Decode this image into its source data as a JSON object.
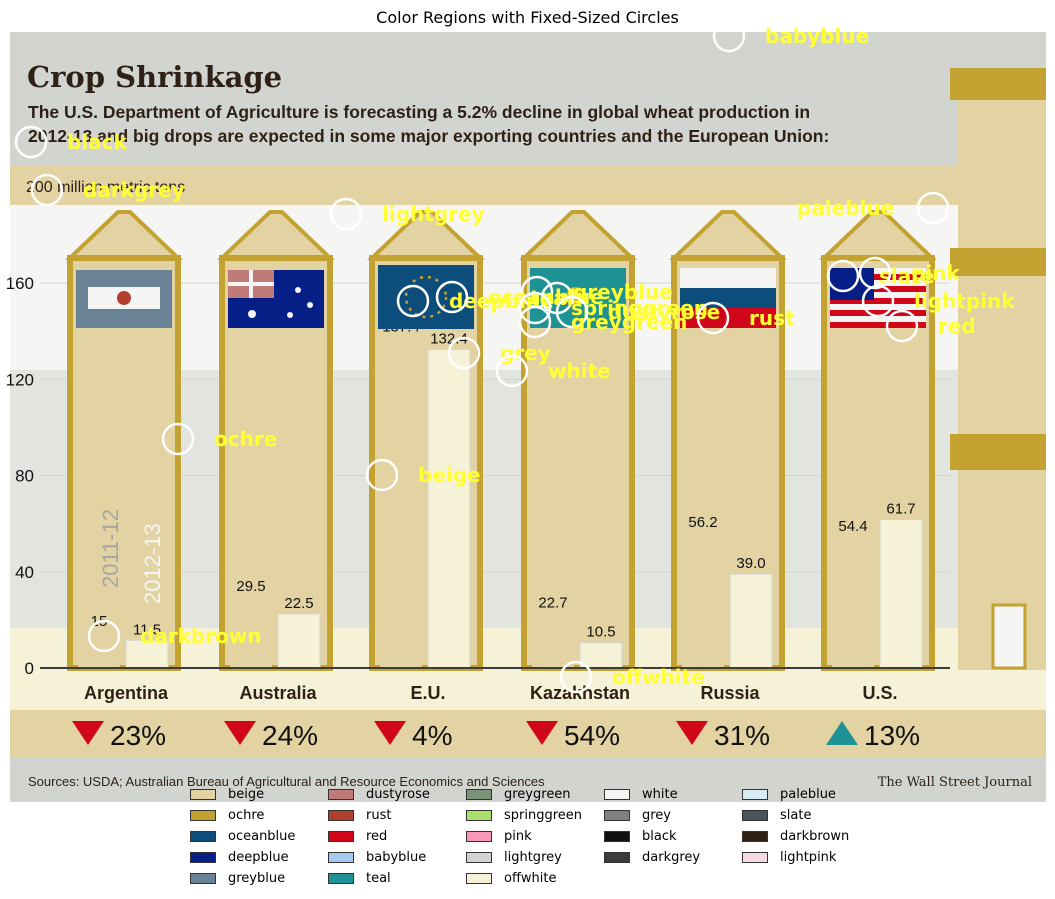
{
  "figure": {
    "title": "Color Regions with Fixed-Sized Circles"
  },
  "infographic": {
    "headline": "Crop Shrinkage",
    "subtitle_line1": "The U.S. Department of Agriculture is forecasting a 5.2% decline in global wheat production in",
    "subtitle_line2": "2012-13 and big drops are expected in some major exporting countries and the European Union:",
    "unit_label": "200 million metric tons",
    "source": "Sources: USDA; Australian Bureau of Agricultural and Resource Economics and Sciences",
    "publisher": "The Wall Street Journal",
    "year_labels": [
      "2011-12",
      "2012-13"
    ]
  },
  "chart_data": {
    "type": "bar",
    "categories": [
      "Argentina",
      "Australia",
      "E.U.",
      "Kazakhstan",
      "Russia",
      "U.S."
    ],
    "series": [
      {
        "name": "2011-12",
        "values": [
          15,
          29.5,
          137.4,
          22.7,
          56.2,
          54.4
        ]
      },
      {
        "name": "2012-13",
        "values": [
          11.5,
          22.5,
          132.4,
          10.5,
          39.0,
          61.7
        ]
      }
    ],
    "value_labels": [
      [
        "15",
        "11.5"
      ],
      [
        "29.5",
        "22.5"
      ],
      [
        "137.4",
        "132.4"
      ],
      [
        "22.7",
        "10.5"
      ],
      [
        "56.2",
        "39.0"
      ],
      [
        "54.4",
        "61.7"
      ]
    ],
    "changes": [
      {
        "text": "23%",
        "direction": "down"
      },
      {
        "text": "24%",
        "direction": "down"
      },
      {
        "text": "4%",
        "direction": "down"
      },
      {
        "text": "54%",
        "direction": "down"
      },
      {
        "text": "31%",
        "direction": "down"
      },
      {
        "text": "13%",
        "direction": "up"
      }
    ],
    "ylim": [
      0,
      200
    ],
    "yticks": [
      0,
      40,
      80,
      120,
      160
    ],
    "ytick_labels": [
      "0",
      "40",
      "80",
      "120",
      "160"
    ],
    "grid": true
  },
  "annotations": [
    {
      "label": "babyblue"
    },
    {
      "label": "black"
    },
    {
      "label": "darkgrey"
    },
    {
      "label": "lightgrey"
    },
    {
      "label": "paleblue"
    },
    {
      "label": "slate"
    },
    {
      "label": "pink"
    },
    {
      "label": "lightpink"
    },
    {
      "label": "red"
    },
    {
      "label": "greyblue"
    },
    {
      "label": "deepblue"
    },
    {
      "label": "oceanblue"
    },
    {
      "label": "teal"
    },
    {
      "label": "springgreen"
    },
    {
      "label": "dustyrose"
    },
    {
      "label": "greygreen"
    },
    {
      "label": "rust"
    },
    {
      "label": "grey"
    },
    {
      "label": "white"
    },
    {
      "label": "ochre"
    },
    {
      "label": "beige"
    },
    {
      "label": "darkbrown"
    },
    {
      "label": "offwhite"
    }
  ],
  "legend": {
    "columns": [
      [
        {
          "label": "beige",
          "color": "#e3d3a3"
        },
        {
          "label": "ochre",
          "color": "#c4a232"
        },
        {
          "label": "oceanblue",
          "color": "#0d4d7c"
        },
        {
          "label": "deepblue",
          "color": "#061f86"
        },
        {
          "label": "greyblue",
          "color": "#6a8296"
        }
      ],
      [
        {
          "label": "dustyrose",
          "color": "#c07a78"
        },
        {
          "label": "rust",
          "color": "#b23f2b"
        },
        {
          "label": "red",
          "color": "#d0061b"
        },
        {
          "label": "babyblue",
          "color": "#a6c8ec"
        },
        {
          "label": "teal",
          "color": "#1e9294"
        }
      ],
      [
        {
          "label": "greygreen",
          "color": "#7a947a"
        },
        {
          "label": "springgreen",
          "color": "#a8e06a"
        },
        {
          "label": "pink",
          "color": "#f598ba"
        },
        {
          "label": "lightgrey",
          "color": "#d2d5cf"
        },
        {
          "label": "offwhite",
          "color": "#f6f2d8"
        }
      ],
      [
        {
          "label": "white",
          "color": "#f5f6f4"
        },
        {
          "label": "grey",
          "color": "#808080"
        },
        {
          "label": "black",
          "color": "#111111"
        },
        {
          "label": "darkgrey",
          "color": "#3b3b39"
        }
      ],
      [
        {
          "label": "paleblue",
          "color": "#d8ecf4"
        },
        {
          "label": "slate",
          "color": "#4b555c"
        },
        {
          "label": "darkbrown",
          "color": "#2f2116"
        },
        {
          "label": "lightpink",
          "color": "#f8dbe2"
        }
      ]
    ]
  }
}
